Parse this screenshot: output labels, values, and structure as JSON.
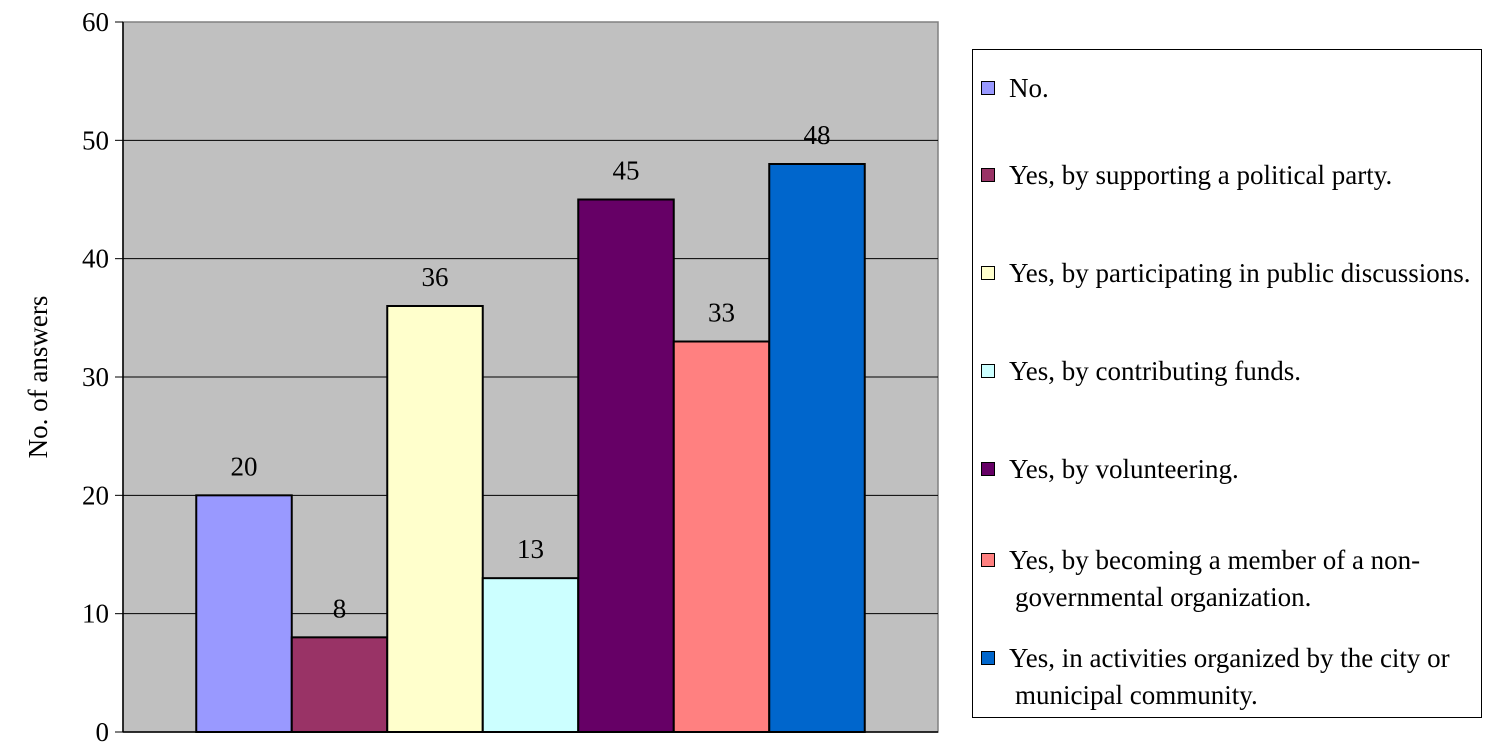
{
  "chart_data": {
    "type": "bar",
    "ylabel": "No. of answers",
    "ylim": [
      0,
      60
    ],
    "yticks": [
      0,
      10,
      20,
      30,
      40,
      50,
      60
    ],
    "grid": true,
    "legend_position": "right",
    "plot_background": "#c0c0c0",
    "series": [
      {
        "name": "No.",
        "value": 20,
        "color": "#9999ff"
      },
      {
        "name": "Yes, by supporting a political party.",
        "value": 8,
        "color": "#993366"
      },
      {
        "name": "Yes, by participating in public discussions.",
        "value": 36,
        "color": "#ffffcc"
      },
      {
        "name": "Yes, by contributing funds.",
        "value": 13,
        "color": "#ccffff"
      },
      {
        "name": "Yes, by volunteering.",
        "value": 45,
        "color": "#660066"
      },
      {
        "name": "Yes, by becoming a member of a non-governmental organization.",
        "value": 33,
        "color": "#ff8080"
      },
      {
        "name": "Yes, in activities organized by the city or municipal community.",
        "value": 48,
        "color": "#0066cc"
      }
    ]
  }
}
